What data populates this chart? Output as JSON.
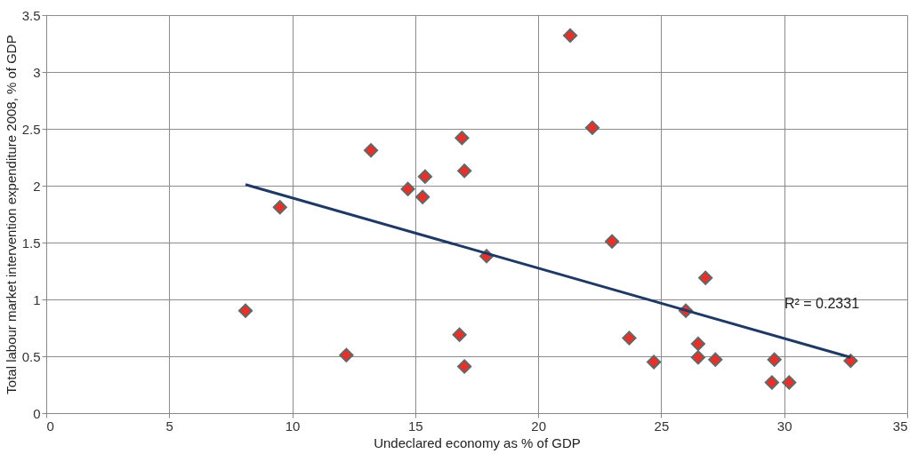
{
  "chart_data": {
    "type": "scatter",
    "xlabel": "Undeclared economy as % of GDP",
    "ylabel": "Total labour market intervention expenditure 2008, % of GDP",
    "xlim": [
      0,
      35
    ],
    "xticks": [
      0,
      5,
      10,
      15,
      20,
      25,
      30,
      35
    ],
    "ylim": [
      0,
      3.5
    ],
    "yticks": [
      0,
      0.5,
      1,
      1.5,
      2,
      2.5,
      3,
      3.5
    ],
    "grid": true,
    "series": [
      {
        "color": "#e8302a",
        "marker": "diamond",
        "x": [
          8.1,
          9.5,
          12.2,
          13.2,
          14.7,
          15.4,
          15.3,
          16.9,
          17.0,
          16.8,
          17.0,
          17.9,
          21.3,
          22.2,
          23.0,
          23.7,
          24.7,
          26.0,
          26.5,
          26.5,
          26.8,
          27.2,
          29.6,
          29.5,
          30.2,
          32.7
        ],
        "values": [
          0.9,
          1.81,
          0.51,
          2.31,
          1.97,
          2.08,
          1.9,
          2.42,
          2.13,
          0.69,
          0.41,
          1.38,
          3.32,
          2.51,
          1.51,
          0.66,
          0.45,
          0.9,
          0.61,
          0.49,
          1.19,
          0.47,
          0.47,
          0.27,
          0.27,
          0.46
        ]
      },
      {
        "type": "line",
        "color": "#1f3864",
        "x": [
          8.1,
          32.7
        ],
        "values": [
          2.01,
          0.49
        ]
      }
    ],
    "annotations": [
      "R² = 0.2331"
    ]
  }
}
